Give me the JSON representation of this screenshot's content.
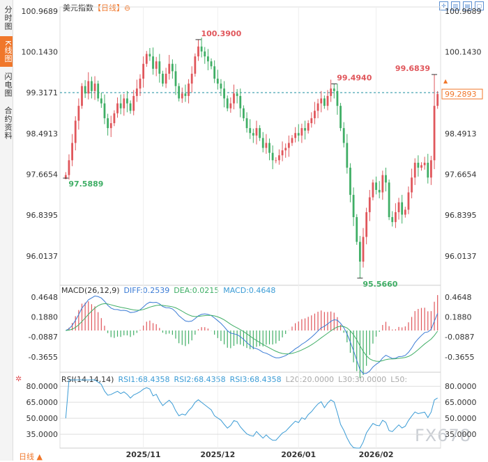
{
  "sidebar": {
    "tabs": [
      {
        "label": "分时图",
        "active": false
      },
      {
        "label": "K线图",
        "active": true
      },
      {
        "label": "闪电图",
        "active": false
      },
      {
        "label": "合约资料",
        "active": false
      }
    ]
  },
  "header": {
    "name": "美元指数",
    "period": "【日线】",
    "toggle": "⊖",
    "icons": [
      "expand-icon",
      "bar-chart-icon",
      "chart-type-icon",
      "maximize-icon"
    ]
  },
  "price_panel": {
    "y_ticks": [
      "100.9689",
      "100.1430",
      "99.3171",
      "98.4913",
      "97.6654",
      "96.8395",
      "96.0137"
    ],
    "last_price_tag": "99.2893",
    "ref_line_label": "99.3171",
    "annotations": [
      {
        "text": "100.3900",
        "color": "#e0565b"
      },
      {
        "text": "99.4940",
        "color": "#e0565b"
      },
      {
        "text": "99.6839",
        "color": "#e0565b"
      },
      {
        "text": "97.5889",
        "color": "#3fae65"
      },
      {
        "text": "95.5660",
        "color": "#3fae65"
      }
    ]
  },
  "macd_panel": {
    "label": "MACD(26,12,9)",
    "diff": "DIFF:0.2539",
    "dea": "DEA:0.0215",
    "macd": "MACD:0.4648",
    "y_ticks": [
      "0.4648",
      "0.1880",
      "-0.0887",
      "-0.3655"
    ]
  },
  "rsi_panel": {
    "label": "RSI(14,14,14)",
    "rsi1": "RSI1:68.4358",
    "rsi2": "RSI2:68.4358",
    "rsi3": "RSI3:68.4358",
    "l20": "L20:20.0000",
    "l30": "L30:30.0000",
    "l50": "L50:",
    "y_ticks": [
      "80.0000",
      "65.0000",
      "50.0000",
      "35.0000"
    ]
  },
  "x_axis": {
    "labels": [
      "2025/11",
      "2025/12",
      "2026/01",
      "2026/02"
    ]
  },
  "footer": {
    "period_tab": "日线 ▲"
  },
  "watermark": "FX678",
  "colors": {
    "up": "#e0565b",
    "down": "#3fae65",
    "accent": "#f0772b",
    "diff": "#3a7bd5",
    "dea": "#3fae65",
    "ref": "#1a8fa0"
  },
  "chart_data": {
    "type": "candlestick",
    "title": "美元指数",
    "price_range": [
      95.45,
      101.05
    ],
    "closes": [
      97.65,
      97.95,
      98.3,
      98.75,
      99.05,
      99.45,
      99.3,
      99.55,
      99.35,
      99.5,
      99.2,
      99.1,
      98.8,
      98.6,
      98.7,
      98.9,
      99.1,
      99.0,
      99.2,
      99.1,
      98.95,
      99.25,
      99.4,
      99.6,
      99.9,
      100.1,
      100.05,
      99.8,
      99.95,
      99.7,
      99.5,
      99.7,
      99.9,
      99.75,
      99.45,
      99.2,
      99.3,
      99.25,
      99.5,
      99.7,
      100.05,
      100.25,
      100.15,
      100.05,
      99.95,
      99.85,
      99.6,
      99.5,
      99.4,
      99.2,
      99.0,
      99.1,
      99.3,
      99.25,
      99.0,
      98.8,
      98.6,
      98.5,
      98.45,
      98.6,
      98.4,
      98.2,
      98.3,
      98.1,
      97.95,
      97.95,
      98.05,
      98.15,
      98.2,
      98.3,
      98.4,
      98.5,
      98.45,
      98.6,
      98.55,
      98.7,
      98.8,
      98.95,
      99.1,
      99.2,
      99.05,
      99.25,
      99.4,
      99.35,
      99.05,
      98.6,
      98.3,
      97.8,
      97.25,
      96.8,
      96.3,
      95.9,
      96.4,
      96.9,
      97.2,
      97.5,
      97.35,
      97.3,
      97.65,
      97.5,
      96.8,
      96.7,
      96.9,
      97.1,
      96.85,
      96.95,
      97.3,
      97.6,
      97.9,
      97.8,
      97.85,
      97.9,
      97.6,
      97.95,
      99.05,
      99.2893
    ],
    "annotations": [
      {
        "label": "100.3900",
        "index": 41,
        "value": 100.39,
        "kind": "high"
      },
      {
        "label": "99.4940",
        "index": 83,
        "value": 99.494,
        "kind": "high"
      },
      {
        "label": "99.6839",
        "index": 114,
        "value": 99.6839,
        "kind": "high"
      },
      {
        "label": "97.5889",
        "index": 0,
        "value": 97.5889,
        "kind": "low"
      },
      {
        "label": "95.5660",
        "index": 91,
        "value": 95.566,
        "kind": "low"
      }
    ],
    "reference_line": 99.3171,
    "macd": {
      "params": [
        26,
        12,
        9
      ],
      "diff": 0.2539,
      "dea": 0.0215,
      "macd": 0.4648,
      "range": [
        -0.55,
        0.55
      ]
    },
    "rsi": {
      "params": [
        14,
        14,
        14
      ],
      "value": 68.4358,
      "range": [
        22,
        86
      ]
    },
    "x_labels": [
      {
        "label": "2025/11",
        "index": 24
      },
      {
        "label": "2025/12",
        "index": 47
      },
      {
        "label": "2026/01",
        "index": 72
      },
      {
        "label": "2026/02",
        "index": 96
      }
    ]
  }
}
